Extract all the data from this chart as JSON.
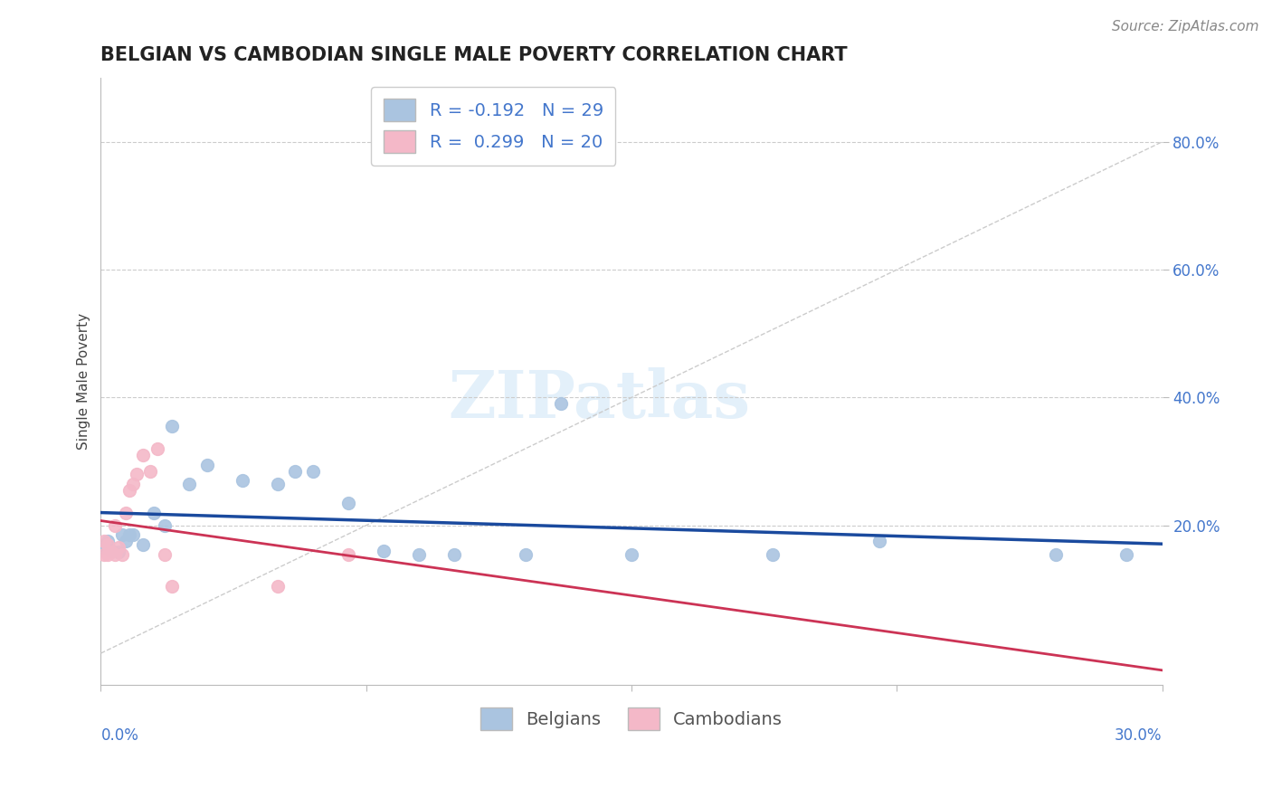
{
  "title": "BELGIAN VS CAMBODIAN SINGLE MALE POVERTY CORRELATION CHART",
  "source": "Source: ZipAtlas.com",
  "ylabel": "Single Male Poverty",
  "xlim": [
    0.0,
    0.3
  ],
  "ylim": [
    -0.05,
    0.9
  ],
  "yticks": [
    0.2,
    0.4,
    0.6,
    0.8
  ],
  "ytick_labels": [
    "20.0%",
    "40.0%",
    "60.0%",
    "80.0%"
  ],
  "background_color": "#ffffff",
  "grid_color": "#cccccc",
  "belgian_color": "#aac4e0",
  "cambodian_color": "#f4b8c8",
  "regression_belgian_color": "#1a4a9e",
  "regression_cambodian_color": "#cc3355",
  "diagonal_color": "#cccccc",
  "legend_R_belgian": "R = -0.192",
  "legend_N_belgian": "N = 29",
  "legend_R_cambodian": "R =  0.299",
  "legend_N_cambodian": "N = 20",
  "belgian_x": [
    0.001,
    0.002,
    0.003,
    0.005,
    0.006,
    0.007,
    0.008,
    0.009,
    0.012,
    0.015,
    0.018,
    0.02,
    0.025,
    0.03,
    0.04,
    0.05,
    0.055,
    0.06,
    0.07,
    0.08,
    0.09,
    0.1,
    0.12,
    0.13,
    0.15,
    0.19,
    0.22,
    0.27,
    0.29
  ],
  "belgian_y": [
    0.165,
    0.175,
    0.16,
    0.158,
    0.185,
    0.175,
    0.185,
    0.185,
    0.17,
    0.22,
    0.2,
    0.355,
    0.265,
    0.295,
    0.27,
    0.265,
    0.285,
    0.285,
    0.235,
    0.16,
    0.155,
    0.155,
    0.155,
    0.39,
    0.155,
    0.155,
    0.175,
    0.155,
    0.155
  ],
  "cambodian_x": [
    0.001,
    0.001,
    0.002,
    0.002,
    0.003,
    0.004,
    0.004,
    0.005,
    0.006,
    0.007,
    0.008,
    0.009,
    0.01,
    0.012,
    0.014,
    0.016,
    0.018,
    0.02,
    0.05,
    0.07
  ],
  "cambodian_y": [
    0.155,
    0.175,
    0.155,
    0.17,
    0.158,
    0.155,
    0.2,
    0.165,
    0.155,
    0.22,
    0.255,
    0.265,
    0.28,
    0.31,
    0.285,
    0.32,
    0.155,
    0.105,
    0.105,
    0.155
  ],
  "marker_size": 100,
  "title_fontsize": 15,
  "axis_label_fontsize": 11,
  "tick_fontsize": 12,
  "legend_fontsize": 14,
  "source_fontsize": 11,
  "tick_color": "#4477cc",
  "title_color": "#222222",
  "ylabel_color": "#444444"
}
